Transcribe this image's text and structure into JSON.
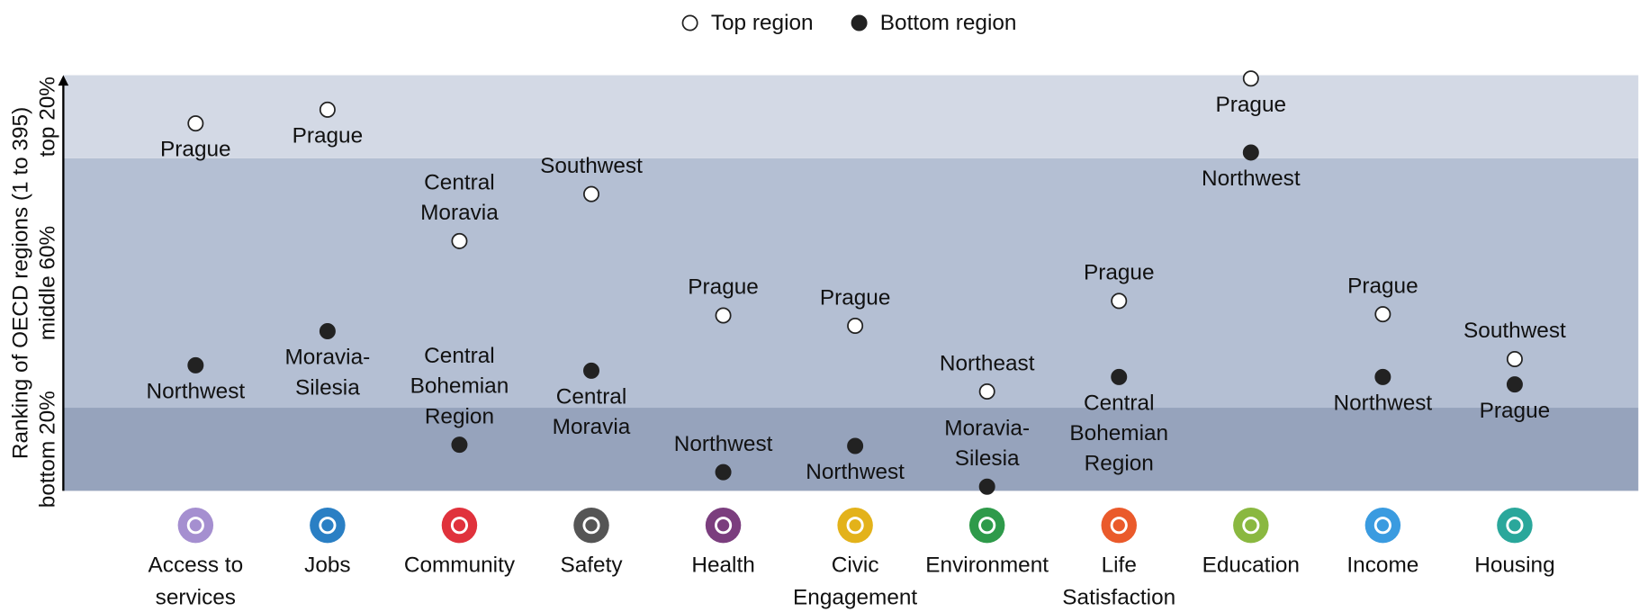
{
  "chart_data": {
    "type": "dot",
    "y_axis_label": "Ranking of OECD regions (1 to 395)",
    "ylim": [
      0,
      100
    ],
    "bands": [
      {
        "label": "bottom 20%",
        "from": 0,
        "to": 20,
        "color": "#96a3bc"
      },
      {
        "label": "middle 60%",
        "from": 20,
        "to": 80,
        "color": "#b4bfd3"
      },
      {
        "label": "top 20%",
        "from": 80,
        "to": 100,
        "color": "#d3d9e5"
      }
    ],
    "categories": [
      [
        "Access to",
        "services"
      ],
      [
        "Jobs"
      ],
      [
        "Community"
      ],
      [
        "Safety"
      ],
      [
        "Health"
      ],
      [
        "Civic",
        "Engagement"
      ],
      [
        "Environment"
      ],
      [
        "Life",
        "Satisfaction"
      ],
      [
        "Education"
      ],
      [
        "Income"
      ],
      [
        "Housing"
      ]
    ],
    "category_colors": [
      "#a58fd0",
      "#2a7fc4",
      "#e0323c",
      "#555555",
      "#7b3e7e",
      "#e3b21a",
      "#2e9a4a",
      "#ea5a2b",
      "#8ab840",
      "#3a9be0",
      "#2aa79b"
    ],
    "series": [
      {
        "name": "Top region",
        "color": "#ffffff",
        "values": [
          88.4,
          91.7,
          60.1,
          71.4,
          42.2,
          39.7,
          23.9,
          45.7,
          99.2,
          42.5,
          31.7
        ],
        "labels": [
          [
            "Prague"
          ],
          [
            "Prague"
          ],
          [
            "Central",
            "Moravia"
          ],
          [
            "Southwest"
          ],
          [
            "Prague"
          ],
          [
            "Prague"
          ],
          [
            "Northeast"
          ],
          [
            "Prague"
          ],
          [
            "Prague"
          ],
          [
            "Prague"
          ],
          [
            "Southwest"
          ]
        ]
      },
      {
        "name": "Bottom region",
        "color": "#222222",
        "values": [
          30.2,
          38.4,
          11.1,
          28.9,
          4.5,
          10.8,
          1.0,
          27.4,
          81.4,
          27.4,
          25.6
        ],
        "labels": [
          [
            "Northwest"
          ],
          [
            "Moravia-",
            "Silesia"
          ],
          [
            "Central",
            "Bohemian",
            "Region"
          ],
          [
            "Central",
            "Moravia"
          ],
          [
            "Northwest"
          ],
          [
            "Northwest"
          ],
          [
            "Moravia-",
            "Silesia"
          ],
          [
            "Central",
            "Bohemian",
            "Region"
          ],
          [
            "Northwest"
          ],
          [
            "Northwest"
          ],
          [
            "Prague"
          ]
        ]
      }
    ]
  }
}
